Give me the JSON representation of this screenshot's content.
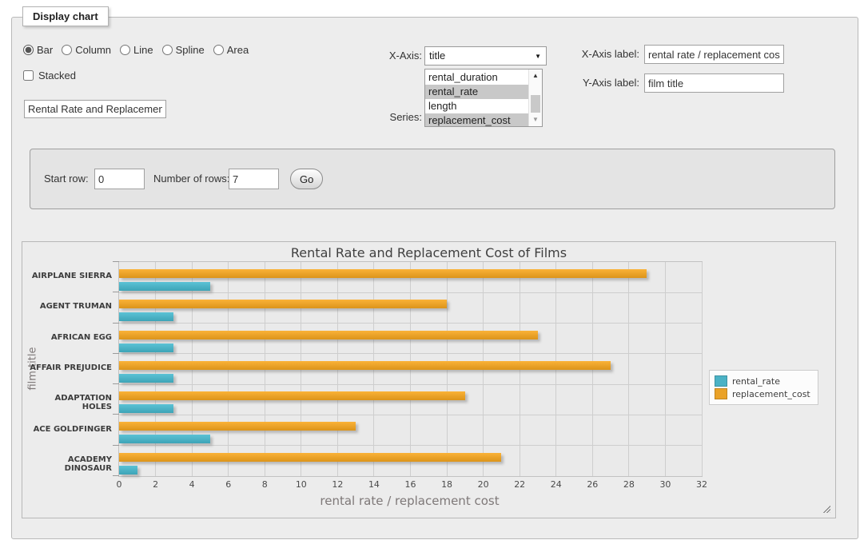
{
  "panel": {
    "legend_title": "Display chart"
  },
  "controls": {
    "chart_types": [
      {
        "label": "Bar",
        "selected": true
      },
      {
        "label": "Column",
        "selected": false
      },
      {
        "label": "Line",
        "selected": false
      },
      {
        "label": "Spline",
        "selected": false
      },
      {
        "label": "Area",
        "selected": false
      }
    ],
    "stacked": {
      "label": "Stacked",
      "checked": false
    },
    "chart_title_input": {
      "value": "Rental Rate and Replacement Cost of Films"
    },
    "xaxis_select": {
      "label": "X-Axis:",
      "value": "title"
    },
    "series_select": {
      "label": "Series:",
      "options": [
        {
          "label": "rental_duration",
          "selected": false
        },
        {
          "label": "rental_rate",
          "selected": true
        },
        {
          "label": "length",
          "selected": false
        },
        {
          "label": "replacement_cost",
          "selected": true
        }
      ]
    },
    "xaxis_label_field": {
      "label": "X-Axis label:",
      "value": "rental rate / replacement cost"
    },
    "yaxis_label_field": {
      "label": "Y-Axis label:",
      "value": "film title"
    },
    "row_controls": {
      "start_row_label": "Start row:",
      "start_row_value": "0",
      "num_rows_label": "Number of rows:",
      "num_rows_value": "7",
      "go_label": "Go"
    }
  },
  "chart_data": {
    "type": "bar",
    "orientation": "horizontal",
    "title": "Rental Rate and Replacement Cost of Films",
    "categories": [
      "AIRPLANE SIERRA",
      "AGENT TRUMAN",
      "AFRICAN EGG",
      "AFFAIR PREJUDICE",
      "ADAPTATION HOLES",
      "ACE GOLDFINGER",
      "ACADEMY DINOSAUR"
    ],
    "series": [
      {
        "name": "rental_rate",
        "color": "#4bb2c5",
        "values": [
          4.99,
          2.99,
          2.99,
          2.99,
          2.99,
          4.99,
          0.99
        ]
      },
      {
        "name": "replacement_cost",
        "color": "#eaa228",
        "values": [
          28.99,
          17.99,
          22.99,
          26.99,
          18.99,
          12.99,
          20.99
        ]
      }
    ],
    "bar_order_top_to_bottom": [
      "replacement_cost",
      "rental_rate"
    ],
    "xlabel": "rental rate / replacement cost",
    "ylabel": "film title",
    "xlim": [
      0,
      32
    ],
    "xticks": [
      0,
      2,
      4,
      6,
      8,
      10,
      12,
      14,
      16,
      18,
      20,
      22,
      24,
      26,
      28,
      30,
      32
    ],
    "grid": true,
    "legend_position": "right"
  }
}
